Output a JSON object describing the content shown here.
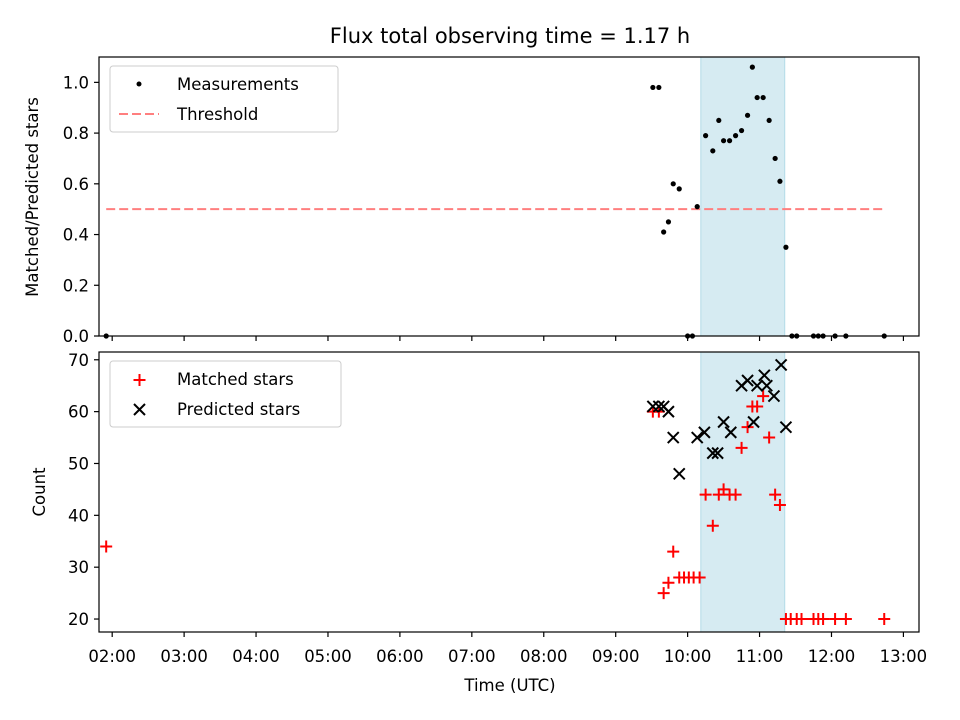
{
  "chart_data": [
    {
      "type": "scatter",
      "title": "Flux total observing time = 1.17 h",
      "xlabel": "",
      "ylabel": "Matched/Predicted stars",
      "xlim": [
        "01:49",
        "13:13"
      ],
      "ylim": [
        0,
        1.1
      ],
      "yticks": [
        0.0,
        0.2,
        0.4,
        0.6,
        0.8,
        1.0
      ],
      "ytick_labels": [
        "0.0",
        "0.2",
        "0.4",
        "0.6",
        "0.8",
        "1.0"
      ],
      "legend_position": "upper-left",
      "shaded_interval": {
        "start": "10:11",
        "end": "11:21",
        "color": "#add8e6"
      },
      "series": [
        {
          "name": "Measurements",
          "marker": "dot",
          "color": "#000000",
          "points": [
            [
              "01:55",
              0.0
            ],
            [
              "09:31",
              0.98
            ],
            [
              "09:36",
              0.98
            ],
            [
              "09:40",
              0.41
            ],
            [
              "09:44",
              0.45
            ],
            [
              "09:48",
              0.6
            ],
            [
              "09:53",
              0.58
            ],
            [
              "10:00",
              0.0
            ],
            [
              "10:04",
              0.0
            ],
            [
              "10:08",
              0.51
            ],
            [
              "10:15",
              0.79
            ],
            [
              "10:21",
              0.73
            ],
            [
              "10:26",
              0.85
            ],
            [
              "10:30",
              0.77
            ],
            [
              "10:35",
              0.77
            ],
            [
              "10:40",
              0.79
            ],
            [
              "10:45",
              0.81
            ],
            [
              "10:50",
              0.87
            ],
            [
              "10:54",
              1.06
            ],
            [
              "10:58",
              0.94
            ],
            [
              "11:03",
              0.94
            ],
            [
              "11:08",
              0.85
            ],
            [
              "11:13",
              0.7
            ],
            [
              "11:17",
              0.61
            ],
            [
              "11:22",
              0.35
            ],
            [
              "11:27",
              0.0
            ],
            [
              "11:31",
              0.0
            ],
            [
              "11:45",
              0.0
            ],
            [
              "11:49",
              0.0
            ],
            [
              "11:53",
              0.0
            ],
            [
              "12:03",
              0.0
            ],
            [
              "12:12",
              0.0
            ],
            [
              "12:44",
              0.0
            ]
          ]
        },
        {
          "name": "Threshold",
          "line": "dashed",
          "color": "#ff7f7f",
          "points": [
            [
              "01:55",
              0.5
            ],
            [
              "12:44",
              0.5
            ]
          ]
        }
      ]
    },
    {
      "type": "scatter",
      "title": "",
      "xlabel": "Time (UTC)",
      "ylabel": "Count",
      "xlim": [
        "01:49",
        "13:13"
      ],
      "ylim": [
        17.5,
        71.5
      ],
      "yticks": [
        20,
        30,
        40,
        50,
        60,
        70
      ],
      "ytick_labels": [
        "20",
        "30",
        "40",
        "50",
        "60",
        "70"
      ],
      "xtick_labels": [
        "02:00",
        "03:00",
        "04:00",
        "05:00",
        "06:00",
        "07:00",
        "08:00",
        "09:00",
        "10:00",
        "11:00",
        "12:00",
        "13:00"
      ],
      "legend_position": "upper-left",
      "shaded_interval": {
        "start": "10:11",
        "end": "11:21",
        "color": "#add8e6"
      },
      "series": [
        {
          "name": "Matched stars",
          "marker": "plus",
          "color": "#ff0000",
          "points": [
            [
              "01:55",
              34
            ],
            [
              "09:31",
              60
            ],
            [
              "09:36",
              60
            ],
            [
              "09:40",
              25
            ],
            [
              "09:44",
              27
            ],
            [
              "09:48",
              33
            ],
            [
              "09:53",
              28
            ],
            [
              "09:57",
              28
            ],
            [
              "10:01",
              28
            ],
            [
              "10:05",
              28
            ],
            [
              "10:10",
              28
            ],
            [
              "10:15",
              44
            ],
            [
              "10:21",
              38
            ],
            [
              "10:26",
              44
            ],
            [
              "10:30",
              45
            ],
            [
              "10:35",
              44
            ],
            [
              "10:40",
              44
            ],
            [
              "10:45",
              53
            ],
            [
              "10:50",
              57
            ],
            [
              "10:54",
              61
            ],
            [
              "10:58",
              61
            ],
            [
              "11:03",
              63
            ],
            [
              "11:08",
              55
            ],
            [
              "11:13",
              44
            ],
            [
              "11:17",
              42
            ],
            [
              "11:22",
              20
            ],
            [
              "11:26",
              20
            ],
            [
              "11:31",
              20
            ],
            [
              "11:35",
              20
            ],
            [
              "11:45",
              20
            ],
            [
              "11:49",
              20
            ],
            [
              "11:53",
              20
            ],
            [
              "12:03",
              20
            ],
            [
              "12:12",
              20
            ],
            [
              "12:44",
              20
            ]
          ]
        },
        {
          "name": "Predicted stars",
          "marker": "x",
          "color": "#000000",
          "points": [
            [
              "09:31",
              61
            ],
            [
              "09:36",
              61
            ],
            [
              "09:40",
              61
            ],
            [
              "09:44",
              60
            ],
            [
              "09:48",
              55
            ],
            [
              "09:53",
              48
            ],
            [
              "10:08",
              55
            ],
            [
              "10:14",
              56
            ],
            [
              "10:21",
              52
            ],
            [
              "10:25",
              52
            ],
            [
              "10:30",
              58
            ],
            [
              "10:36",
              56
            ],
            [
              "10:45",
              65
            ],
            [
              "10:50",
              66
            ],
            [
              "10:55",
              58
            ],
            [
              "10:58",
              65
            ],
            [
              "11:04",
              67
            ],
            [
              "11:06",
              65
            ],
            [
              "11:12",
              63
            ],
            [
              "11:18",
              69
            ],
            [
              "11:22",
              57
            ]
          ]
        }
      ]
    }
  ]
}
